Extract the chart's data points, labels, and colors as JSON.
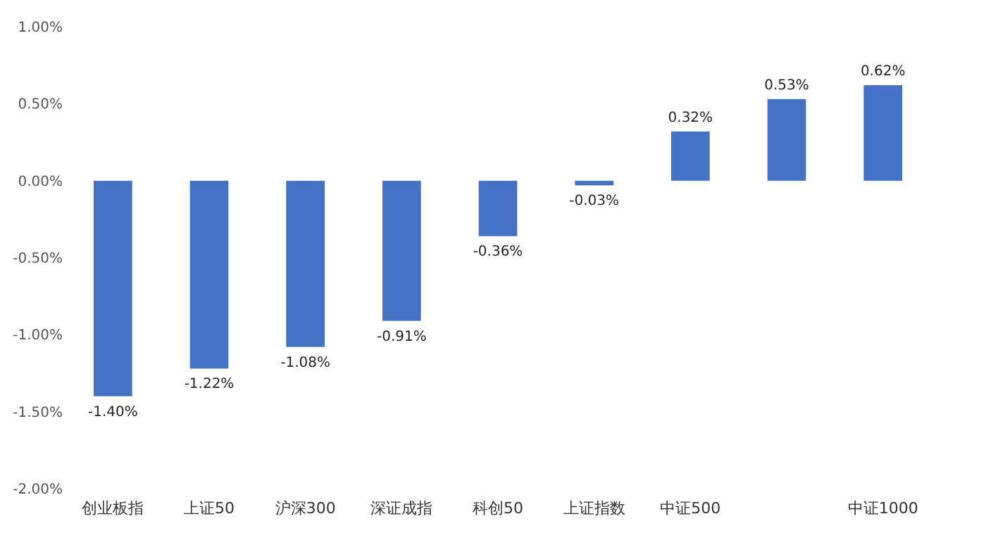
{
  "chart_data": {
    "type": "bar",
    "categories": [
      "创业板指",
      "上证50",
      "沪深300",
      "深证成指",
      "科创50",
      "上证指数",
      "中证500",
      null,
      "中证1000"
    ],
    "values": [
      -1.4,
      -1.22,
      -1.08,
      -0.91,
      -0.36,
      -0.03,
      0.32,
      0.53,
      0.62
    ],
    "value_labels": [
      "-1.40%",
      "-1.22%",
      "-1.08%",
      "-0.91%",
      "-0.36%",
      "-0.03%",
      "0.32%",
      "0.53%",
      "0.62%"
    ],
    "color": "#4472c4",
    "ylim": [
      -2,
      1
    ],
    "yticks": [
      {
        "value": -2,
        "label": "-2.00%"
      },
      {
        "value": -1.5,
        "label": "-1.50%"
      },
      {
        "value": -1,
        "label": "-1.00%"
      },
      {
        "value": -0.5,
        "label": "-0.50%"
      },
      {
        "value": 0,
        "label": "0.00%"
      },
      {
        "value": 0.5,
        "label": "0.50%"
      },
      {
        "value": 1,
        "label": "1.00%"
      }
    ],
    "grid": false
  }
}
